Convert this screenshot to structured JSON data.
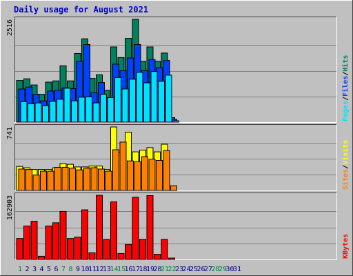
{
  "chart_data": {
    "type": "bar",
    "title": "Daily usage for August 2021",
    "days": [
      "1",
      "2",
      "3",
      "4",
      "5",
      "6",
      "7",
      "8",
      "9",
      "10",
      "11",
      "12",
      "13",
      "14",
      "15",
      "16",
      "17",
      "18",
      "19",
      "20",
      "21",
      "22",
      "23",
      "24",
      "25",
      "26",
      "27",
      "28",
      "29",
      "30",
      "31"
    ],
    "weekend_days": [
      1,
      7,
      8,
      14,
      15,
      21,
      22,
      28,
      29
    ],
    "colors": {
      "hits": "#00805c",
      "files": "#0040ff",
      "pages": "#00e0ff",
      "visits": "#ffff00",
      "sites": "#ff8000",
      "kbytes": "#ff0000",
      "weekday_label": "#000080",
      "weekend_label": "#008040"
    },
    "panels": [
      {
        "name": "requests",
        "max_label": "2516",
        "ymax": 2516,
        "legend": [
          "Pages",
          "/",
          "Files",
          "/",
          "Hits"
        ],
        "legend_colors": [
          "#00e0ff",
          "#000000",
          "#0040ff",
          "#000000",
          "#00805c"
        ],
        "series": [
          {
            "name": "Hits",
            "color": "#00805c",
            "values": [
              1020,
              1060,
              910,
              680,
              980,
              1010,
              1380,
              1010,
              1680,
              2040,
              1070,
              1160,
              780,
              1840,
              1580,
              2050,
              2516,
              1490,
              1840,
              1490,
              1690,
              110,
              0,
              0,
              0,
              0,
              0,
              0,
              0,
              0,
              0
            ]
          },
          {
            "name": "Files",
            "color": "#0040ff",
            "values": [
              810,
              860,
              680,
              520,
              760,
              780,
              840,
              820,
              1490,
              1900,
              720,
              970,
              580,
              1420,
              1260,
              1570,
              1900,
              1260,
              1530,
              1330,
              1510,
              70,
              0,
              0,
              0,
              0,
              0,
              0,
              0,
              0,
              0
            ]
          },
          {
            "name": "Pages",
            "color": "#00e0ff",
            "values": [
              500,
              450,
              470,
              400,
              510,
              560,
              830,
              520,
              610,
              620,
              470,
              680,
              600,
              1090,
              810,
              1050,
              1220,
              960,
              1240,
              1000,
              1150,
              30,
              0,
              0,
              0,
              0,
              0,
              0,
              0,
              0,
              0
            ]
          }
        ]
      },
      {
        "name": "visits",
        "max_label": "741",
        "ymax": 741,
        "legend": [
          "Sites",
          "/",
          "Visits"
        ],
        "legend_colors": [
          "#ff8000",
          "#000000",
          "#ffff00"
        ],
        "series": [
          {
            "name": "Visits",
            "color": "#ffff00",
            "values": [
              280,
              265,
              245,
              245,
              245,
              265,
              315,
              305,
              275,
              275,
              285,
              285,
              245,
              741,
              440,
              680,
              450,
              470,
              500,
              450,
              540,
              30,
              0,
              0,
              0,
              0,
              0,
              0,
              0,
              0,
              0
            ]
          },
          {
            "name": "Sites",
            "color": "#ff8000",
            "values": [
              250,
              245,
              180,
              225,
              225,
              270,
              270,
              260,
              240,
              260,
              265,
              250,
              225,
              475,
              565,
              345,
              335,
              395,
              365,
              350,
              465,
              55,
              0,
              0,
              0,
              0,
              0,
              0,
              0,
              0,
              0
            ]
          }
        ]
      },
      {
        "name": "kbytes",
        "max_label": "162903",
        "ymax": 162903,
        "legend": [
          "KBytes"
        ],
        "legend_colors": [
          "#ff0000"
        ],
        "series": [
          {
            "name": "KBytes",
            "color": "#ff0000",
            "values": [
              53000,
              85000,
              97000,
              8000,
              85000,
              93000,
              122000,
              53000,
              57000,
              126000,
              17000,
              162903,
              51000,
              146000,
              15000,
              38000,
              158000,
              51000,
              162000,
              13000,
              51000,
              2500,
              0,
              0,
              0,
              0,
              0,
              0,
              0,
              0,
              0
            ]
          }
        ]
      }
    ]
  }
}
